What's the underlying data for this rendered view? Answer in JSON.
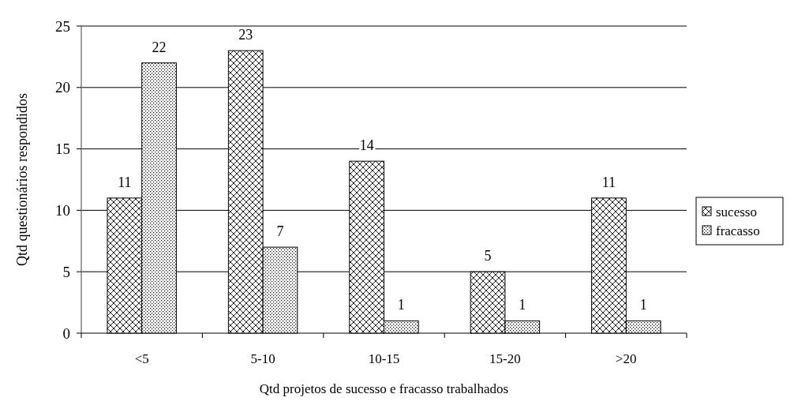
{
  "chart_data": {
    "type": "bar",
    "xlabel": "Qtd projetos de sucesso e fracasso trabalhados",
    "ylabel": "Qtd questionários respondidos",
    "categories": [
      "<5",
      "5-10",
      "10-15",
      "15-20",
      ">20"
    ],
    "series": [
      {
        "name": "sucesso",
        "color": "#000000",
        "values": [
          11,
          23,
          14,
          5,
          11
        ]
      },
      {
        "name": "fracasso",
        "color": "#000000",
        "values": [
          22,
          7,
          1,
          1,
          1
        ]
      }
    ],
    "ylim": [
      0,
      25
    ],
    "yticks": [
      0,
      5,
      10,
      15,
      20,
      25
    ],
    "grid": "y",
    "legend": "right",
    "data_labels": true
  }
}
